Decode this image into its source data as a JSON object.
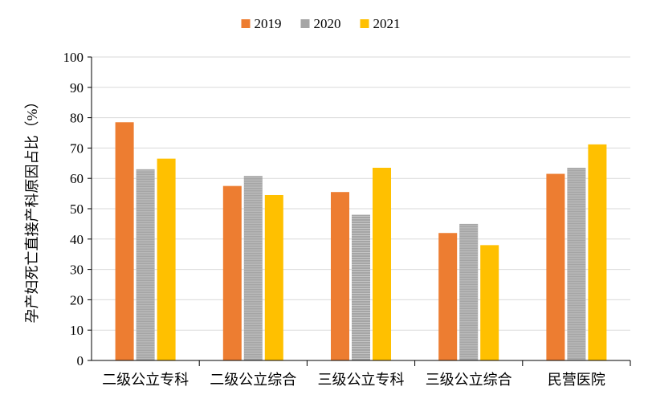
{
  "chart_data": {
    "type": "bar",
    "title": "",
    "xlabel": "",
    "ylabel": "孕产妇死亡直接产科原因占比（%）",
    "ylim": [
      0,
      100
    ],
    "yticks": [
      0,
      10,
      20,
      30,
      40,
      50,
      60,
      70,
      80,
      90,
      100
    ],
    "categories": [
      "二级公立专科",
      "二级公立综合",
      "三级公立专科",
      "三级公立综合",
      "民营医院"
    ],
    "series": [
      {
        "name": "2019",
        "color": "#ED7D31",
        "values": [
          78.5,
          57.5,
          55.5,
          42.0,
          61.5
        ]
      },
      {
        "name": "2020",
        "color": "#A5A5A5",
        "values": [
          63.0,
          60.8,
          48.0,
          45.0,
          63.5
        ]
      },
      {
        "name": "2021",
        "color": "#FFC000",
        "values": [
          66.5,
          54.5,
          63.5,
          38.0,
          71.2
        ]
      }
    ],
    "legend_position": "top-center",
    "grid": true
  }
}
